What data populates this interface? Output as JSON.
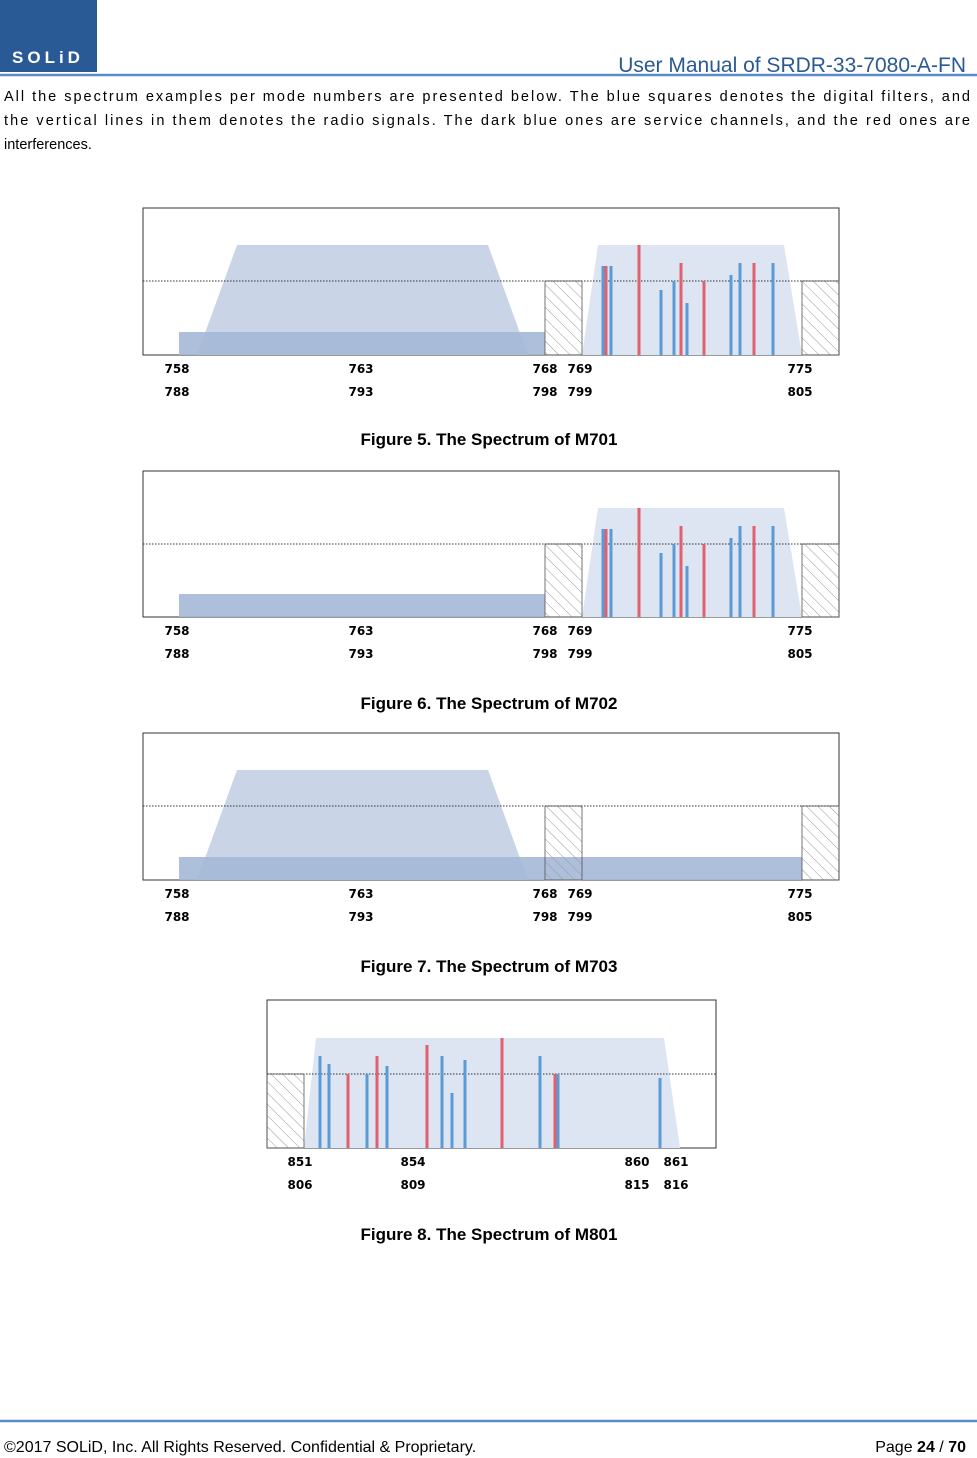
{
  "header": {
    "logo": "SOLiD",
    "title": "User Manual of SRDR-33-7080-A-FN"
  },
  "intro": {
    "lines": [
      "All the spectrum examples per mode numbers are presented below. The blue squares denotes the digital filters, and",
      "the vertical lines in them denotes the radio signals. The dark blue ones are service channels, and the red ones are",
      "interferences."
    ]
  },
  "figures": [
    {
      "caption": "Figure 5. The Spectrum of M701",
      "labels": [
        [
          "758",
          "788"
        ],
        [
          "763",
          "793"
        ],
        [
          "768",
          "798"
        ],
        [
          "769",
          "799"
        ],
        [
          "775",
          "805"
        ]
      ]
    },
    {
      "caption": "Figure 6. The Spectrum of M702",
      "labels": [
        [
          "758",
          "788"
        ],
        [
          "763",
          "793"
        ],
        [
          "768",
          "798"
        ],
        [
          "769",
          "799"
        ],
        [
          "775",
          "805"
        ]
      ]
    },
    {
      "caption": "Figure 7. The Spectrum of M703",
      "labels": [
        [
          "758",
          "788"
        ],
        [
          "763",
          "793"
        ],
        [
          "768",
          "798"
        ],
        [
          "769",
          "799"
        ],
        [
          "775",
          "805"
        ]
      ]
    },
    {
      "caption": "Figure 8. The Spectrum of M801",
      "labels": [
        [
          "851",
          "806"
        ],
        [
          "854",
          "809"
        ],
        [
          "860",
          "815"
        ],
        [
          "861",
          "816"
        ]
      ]
    }
  ],
  "footer": {
    "copyright": "©2017 SOLiD, Inc. All Rights Reserved. Confidential & Proprietary.",
    "page_label": "Page",
    "page": "24",
    "separator": "/",
    "total": "70"
  }
}
